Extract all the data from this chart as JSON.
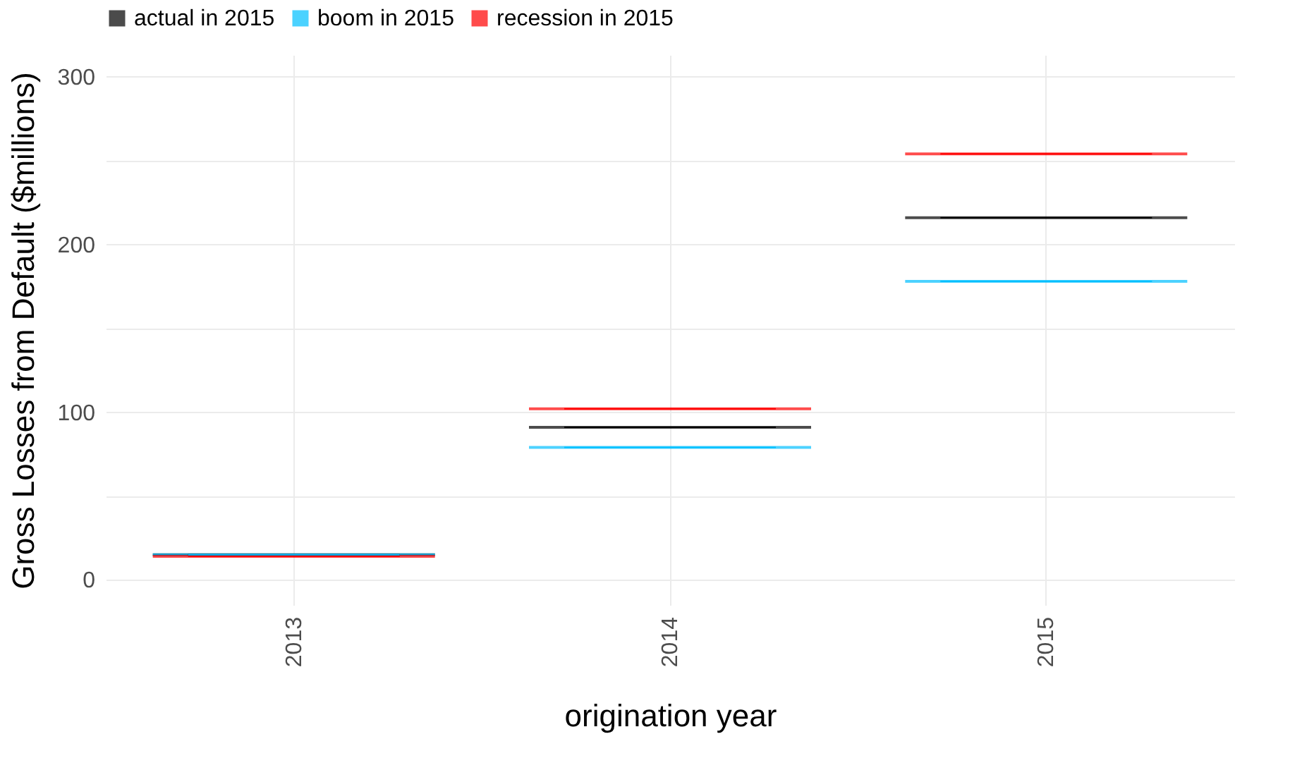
{
  "chart_data": {
    "type": "box",
    "xlabel": "origination year",
    "ylabel": "Gross Losses from Default ($millions)",
    "categories": [
      "2013",
      "2014",
      "2015"
    ],
    "series": [
      {
        "name": "actual in 2015",
        "color": "#000000",
        "boxes": [
          {
            "low": 15,
            "q1": 15,
            "median": 15,
            "q3": 15,
            "high": 15
          },
          {
            "low": 91,
            "q1": 91,
            "median": 91,
            "q3": 91,
            "high": 91
          },
          {
            "low": 216,
            "q1": 216,
            "median": 216,
            "q3": 216,
            "high": 216
          }
        ]
      },
      {
        "name": "boom in 2015",
        "color": "#00bfff",
        "boxes": [
          {
            "low": 15,
            "q1": 15,
            "median": 15,
            "q3": 15,
            "high": 15
          },
          {
            "low": 79,
            "q1": 79,
            "median": 79,
            "q3": 79,
            "high": 79
          },
          {
            "low": 178,
            "q1": 178,
            "median": 178,
            "q3": 178,
            "high": 178
          }
        ]
      },
      {
        "name": "recession in 2015",
        "color": "#ff0000",
        "boxes": [
          {
            "low": 14,
            "q1": 14,
            "median": 14,
            "q3": 14,
            "high": 14
          },
          {
            "low": 102,
            "q1": 102,
            "median": 102,
            "q3": 102,
            "high": 102
          },
          {
            "low": 254,
            "q1": 254,
            "median": 254,
            "q3": 254,
            "high": 254
          }
        ]
      }
    ],
    "ylim": [
      -15,
      313
    ],
    "yticks": [
      0,
      {
        "value": 50,
        "label": null
      },
      100,
      {
        "value": 150,
        "label": null
      },
      200,
      {
        "value": 250,
        "label": null
      },
      300
    ],
    "grid": true,
    "legend": "top"
  }
}
